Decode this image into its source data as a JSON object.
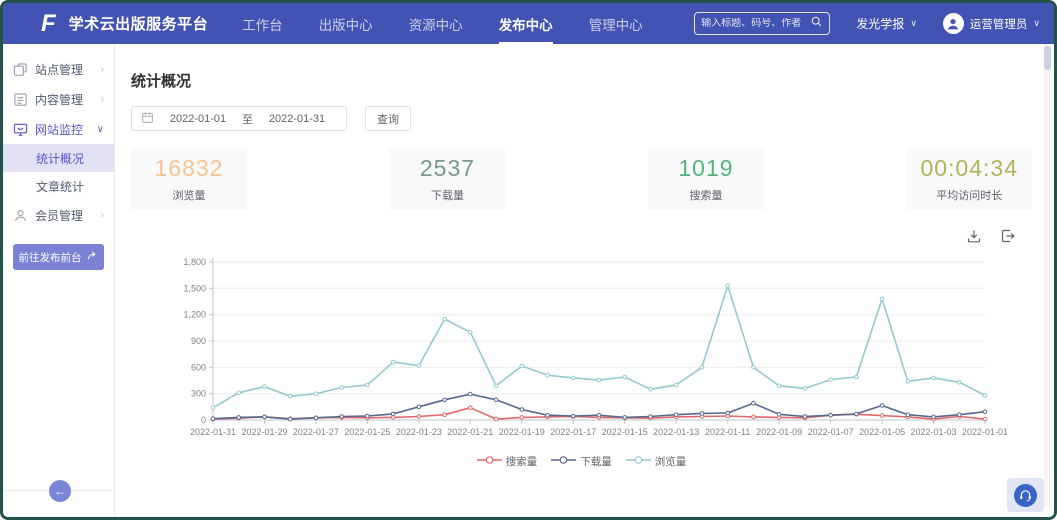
{
  "glyphs": {
    "chevron_down": "∨",
    "chevron_right": "›",
    "arrow_left": "←"
  },
  "header": {
    "bg_color": "#4353b4",
    "logo_text": "F",
    "app_title": "学术云出版服务平台",
    "nav_items": [
      {
        "label": "工作台",
        "active": false
      },
      {
        "label": "出版中心",
        "active": false
      },
      {
        "label": "资源中心",
        "active": false
      },
      {
        "label": "发布中心",
        "active": true
      },
      {
        "label": "管理中心",
        "active": false
      }
    ],
    "search": {
      "placeholder": "输入标题、码号、作者",
      "icon": "search-icon"
    },
    "journal_selector": {
      "value": "发光学报"
    },
    "user_menu": {
      "name": "运营管理员",
      "icon": "avatar-icon"
    }
  },
  "sidebar": {
    "active_color": "#5b54c8",
    "menu": [
      {
        "label": "站点管理",
        "icon": "site-icon",
        "expanded": false,
        "active": false,
        "children": []
      },
      {
        "label": "内容管理",
        "icon": "content-icon",
        "expanded": false,
        "active": false,
        "children": []
      },
      {
        "label": "网站监控",
        "icon": "monitor-icon",
        "expanded": true,
        "active": true,
        "children": [
          {
            "label": "统计概况",
            "active": true
          },
          {
            "label": "文章统计",
            "active": false
          }
        ]
      },
      {
        "label": "会员管理",
        "icon": "member-icon",
        "expanded": false,
        "active": false,
        "children": []
      }
    ],
    "action_button": {
      "label": "前往发布前台",
      "icon": "jump-arrow-icon",
      "bg_color": "#7b82d5"
    }
  },
  "main": {
    "page_title": "统计概况",
    "filter": {
      "calendar_icon": "calendar-icon",
      "date_from": "2022-01-01",
      "date_separator": "至",
      "date_to": "2022-01-31",
      "query_button": "查询"
    },
    "stats": [
      {
        "value": "16832",
        "label": "浏览量",
        "color": "#f6c392"
      },
      {
        "value": "2537",
        "label": "下载量",
        "color": "#7a9a85"
      },
      {
        "value": "1019",
        "label": "搜索量",
        "color": "#55b27c"
      },
      {
        "value": "00:04:34",
        "label": "平均访问时长",
        "color": "#b2b356"
      }
    ],
    "toolbar_icons": [
      "download-icon",
      "export-icon"
    ]
  },
  "chart_data": {
    "type": "line",
    "x": [
      "2022-01-31",
      "2022-01-30",
      "2022-01-29",
      "2022-01-28",
      "2022-01-27",
      "2022-01-26",
      "2022-01-25",
      "2022-01-24",
      "2022-01-23",
      "2022-01-22",
      "2022-01-21",
      "2022-01-20",
      "2022-01-19",
      "2022-01-18",
      "2022-01-17",
      "2022-01-16",
      "2022-01-15",
      "2022-01-14",
      "2022-01-13",
      "2022-01-12",
      "2022-01-11",
      "2022-01-10",
      "2022-01-09",
      "2022-01-08",
      "2022-01-07",
      "2022-01-06",
      "2022-01-05",
      "2022-01-04",
      "2022-01-03",
      "2022-01-02",
      "2022-01-01"
    ],
    "series": [
      {
        "name": "搜索量",
        "color": "#e26868",
        "values": [
          10,
          20,
          35,
          15,
          25,
          30,
          25,
          30,
          40,
          60,
          140,
          10,
          30,
          35,
          40,
          30,
          25,
          20,
          35,
          40,
          45,
          35,
          30,
          25,
          55,
          65,
          50,
          35,
          10,
          40,
          10
        ]
      },
      {
        "name": "下载量",
        "color": "#55688f",
        "values": [
          15,
          30,
          35,
          10,
          25,
          40,
          45,
          70,
          150,
          230,
          295,
          230,
          120,
          55,
          45,
          55,
          30,
          40,
          60,
          75,
          80,
          190,
          65,
          40,
          55,
          70,
          165,
          60,
          35,
          60,
          95
        ]
      },
      {
        "name": "浏览量",
        "color": "#94c9d0",
        "values": [
          140,
          310,
          380,
          270,
          300,
          370,
          400,
          660,
          620,
          1150,
          1000,
          390,
          615,
          510,
          480,
          455,
          490,
          350,
          400,
          600,
          1530,
          600,
          390,
          360,
          460,
          490,
          1380,
          440,
          480,
          430,
          280
        ]
      }
    ],
    "ylim": [
      0,
      1800
    ],
    "yticks": [
      0,
      300,
      600,
      900,
      1200,
      1500,
      1800
    ],
    "x_label_interval": 2,
    "grid": true,
    "legend_position": "bottom"
  }
}
